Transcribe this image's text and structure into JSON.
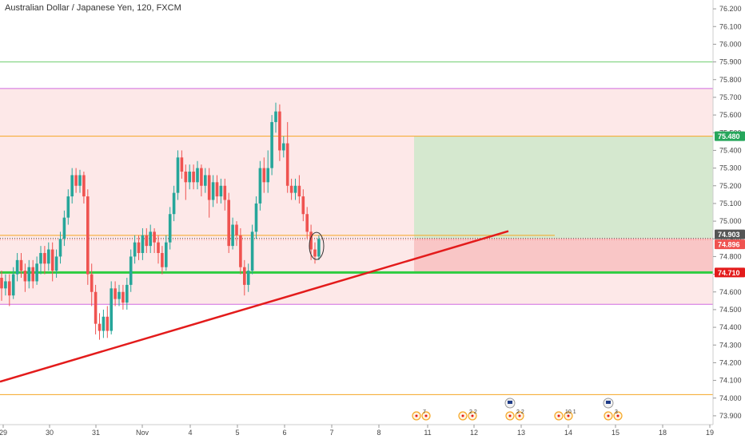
{
  "title": "Australian Dollar / Japanese Yen, 120, FXCM",
  "colors": {
    "up": "#26a69a",
    "down": "#ef5350",
    "zone_fill": "#fde8e8",
    "profit_fill": "#d5e8cf",
    "loss_fill": "#f9c6c6",
    "trendline": "#e31b1b",
    "support": "#2ecc40",
    "magenta": "#d16be0",
    "orange": "#f5a623",
    "light_green": "#7fd37f",
    "axis_text": "#444444"
  },
  "chart_data": {
    "type": "candlestick",
    "symbol": "Australian Dollar / Japanese Yen",
    "interval": "120",
    "source": "FXCM",
    "ylim": [
      73.85,
      76.25
    ],
    "y_ticks": [
      "76.200",
      "76.100",
      "76.000",
      "75.900",
      "75.800",
      "75.700",
      "75.600",
      "75.500",
      "75.400",
      "75.300",
      "75.200",
      "75.100",
      "75.000",
      "74.900",
      "74.800",
      "74.700",
      "74.600",
      "74.500",
      "74.400",
      "74.300",
      "74.200",
      "74.100",
      "74.000",
      "73.900"
    ],
    "x_ticks": [
      "29",
      "30",
      "31",
      "Nov",
      "4",
      "5",
      "6",
      "7",
      "8",
      "11",
      "12",
      "13",
      "14",
      "15",
      "18",
      "19"
    ],
    "candles": [
      [
        74.68,
        74.62,
        74.55,
        74.72
      ],
      [
        74.62,
        74.66,
        74.58,
        74.7
      ],
      [
        74.66,
        74.58,
        74.52,
        74.7
      ],
      [
        74.58,
        74.7,
        74.56,
        74.74
      ],
      [
        74.7,
        74.78,
        74.66,
        74.82
      ],
      [
        74.78,
        74.72,
        74.68,
        74.82
      ],
      [
        74.72,
        74.66,
        74.6,
        74.76
      ],
      [
        74.66,
        74.74,
        74.62,
        74.78
      ],
      [
        74.74,
        74.66,
        74.62,
        74.78
      ],
      [
        74.66,
        74.76,
        74.64,
        74.8
      ],
      [
        74.76,
        74.82,
        74.7,
        74.86
      ],
      [
        74.82,
        74.76,
        74.7,
        74.86
      ],
      [
        74.76,
        74.84,
        74.72,
        74.88
      ],
      [
        74.84,
        74.72,
        74.66,
        74.88
      ],
      [
        74.72,
        74.8,
        74.68,
        74.84
      ],
      [
        74.8,
        74.9,
        74.76,
        74.94
      ],
      [
        74.9,
        75.02,
        74.86,
        75.06
      ],
      [
        75.02,
        75.14,
        74.98,
        75.18
      ],
      [
        75.14,
        75.26,
        75.1,
        75.3
      ],
      [
        75.26,
        75.2,
        75.16,
        75.3
      ],
      [
        75.2,
        75.26,
        75.16,
        75.29
      ],
      [
        75.26,
        75.14,
        75.1,
        75.28
      ],
      [
        75.14,
        74.7,
        74.64,
        75.18
      ],
      [
        74.7,
        74.6,
        74.52,
        74.76
      ],
      [
        74.6,
        74.42,
        74.36,
        74.64
      ],
      [
        74.42,
        74.38,
        74.33,
        74.48
      ],
      [
        74.38,
        74.46,
        74.34,
        74.5
      ],
      [
        74.46,
        74.38,
        74.34,
        74.52
      ],
      [
        74.38,
        74.62,
        74.36,
        74.66
      ],
      [
        74.62,
        74.56,
        74.52,
        74.66
      ],
      [
        74.56,
        74.6,
        74.52,
        74.64
      ],
      [
        74.6,
        74.54,
        74.5,
        74.64
      ],
      [
        74.54,
        74.64,
        74.5,
        74.68
      ],
      [
        74.64,
        74.8,
        74.6,
        74.84
      ],
      [
        74.8,
        74.88,
        74.76,
        74.92
      ],
      [
        74.88,
        74.82,
        74.78,
        74.92
      ],
      [
        74.82,
        74.92,
        74.78,
        74.96
      ],
      [
        74.92,
        74.86,
        74.82,
        74.96
      ],
      [
        74.86,
        74.94,
        74.82,
        74.98
      ],
      [
        74.94,
        74.88,
        74.82,
        74.96
      ],
      [
        74.88,
        74.82,
        74.76,
        74.92
      ],
      [
        74.82,
        74.74,
        74.7,
        74.86
      ],
      [
        74.74,
        74.88,
        74.72,
        74.92
      ],
      [
        74.88,
        75.04,
        74.84,
        75.08
      ],
      [
        75.04,
        75.16,
        75.0,
        75.2
      ],
      [
        75.16,
        75.36,
        75.12,
        75.4
      ],
      [
        75.36,
        75.28,
        75.24,
        75.4
      ],
      [
        75.28,
        75.22,
        75.12,
        75.32
      ],
      [
        75.22,
        75.28,
        75.18,
        75.32
      ],
      [
        75.28,
        75.22,
        75.18,
        75.32
      ],
      [
        75.22,
        75.3,
        75.18,
        75.34
      ],
      [
        75.3,
        75.2,
        75.14,
        75.32
      ],
      [
        75.2,
        75.26,
        75.16,
        75.3
      ],
      [
        75.26,
        75.12,
        75.02,
        75.3
      ],
      [
        75.12,
        75.22,
        75.08,
        75.26
      ],
      [
        75.22,
        75.14,
        75.1,
        75.26
      ],
      [
        75.14,
        75.2,
        75.1,
        75.24
      ],
      [
        75.2,
        75.12,
        75.06,
        75.24
      ],
      [
        75.12,
        74.86,
        74.82,
        75.16
      ],
      [
        74.86,
        74.98,
        74.84,
        75.02
      ],
      [
        74.98,
        74.92,
        74.86,
        75.0
      ],
      [
        74.92,
        74.74,
        74.7,
        74.96
      ],
      [
        74.74,
        74.64,
        74.58,
        74.78
      ],
      [
        74.64,
        74.72,
        74.6,
        74.76
      ],
      [
        74.72,
        74.94,
        74.7,
        74.98
      ],
      [
        74.94,
        75.1,
        74.9,
        75.14
      ],
      [
        75.1,
        75.3,
        75.06,
        75.34
      ],
      [
        75.3,
        75.22,
        75.16,
        75.36
      ],
      [
        75.22,
        75.3,
        75.16,
        75.4
      ],
      [
        75.3,
        75.56,
        75.26,
        75.6
      ],
      [
        75.56,
        75.62,
        75.5,
        75.67
      ],
      [
        75.62,
        75.4,
        75.34,
        75.66
      ],
      [
        75.4,
        75.44,
        75.36,
        75.48
      ],
      [
        75.44,
        75.2,
        75.16,
        75.56
      ],
      [
        75.2,
        75.16,
        75.12,
        75.24
      ],
      [
        75.16,
        75.2,
        75.12,
        75.24
      ],
      [
        75.2,
        75.14,
        75.1,
        75.26
      ],
      [
        75.14,
        75.04,
        75.0,
        75.18
      ],
      [
        75.04,
        74.94,
        74.9,
        75.08
      ],
      [
        74.94,
        74.84,
        74.78,
        74.98
      ],
      [
        74.84,
        74.8,
        74.76,
        74.88
      ],
      [
        74.8,
        74.9,
        74.78,
        74.92
      ]
    ],
    "zones": [
      {
        "type": "range",
        "from": 74.53,
        "to": 75.75
      },
      {
        "type": "take-profit",
        "from": 74.903,
        "to": 75.48
      },
      {
        "type": "stop-loss",
        "from": 74.71,
        "to": 74.903
      }
    ],
    "horizontal_lines": [
      75.9,
      75.75,
      75.48,
      74.92,
      74.903,
      74.896,
      74.71,
      74.53,
      74.02
    ],
    "trendline": {
      "from_candle": 0,
      "from_price": 74.12,
      "to_candle": 96,
      "to_price": 74.93
    },
    "price_labels": [
      {
        "text": "75.480",
        "value": 75.48,
        "color": "#26a65b"
      },
      {
        "text": "74.903",
        "value": 74.903,
        "color": "#555555"
      },
      {
        "text": "74.896",
        "value": 74.896,
        "color": "#ef5350"
      },
      {
        "text": "74.710",
        "value": 74.71,
        "color": "#e31b1b"
      }
    ],
    "events": [
      {
        "x_day": 10.8,
        "text": "7"
      },
      {
        "x_day": 11.8,
        "text": "2 2"
      },
      {
        "x_day": 12.8,
        "text": "2 2"
      },
      {
        "x_day": 13.8,
        "text": "10 1"
      },
      {
        "x_day": 14.8,
        "text": "3"
      }
    ]
  }
}
